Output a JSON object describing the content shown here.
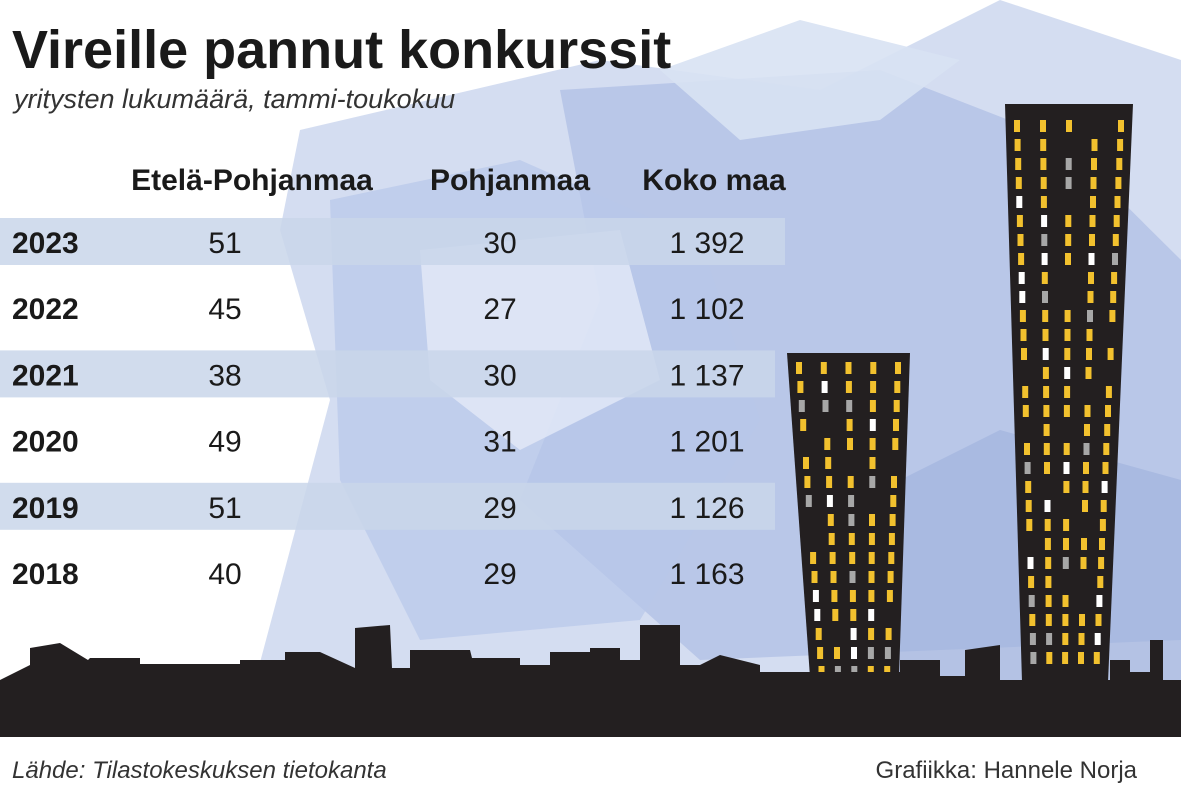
{
  "header": {
    "title": "Vireille pannut konkurssit",
    "subtitle": "yritysten lukumäärä, tammi-toukokuu"
  },
  "table": {
    "columns": [
      "Etelä-Pohjanmaa",
      "Pohjanmaa",
      "Koko maa"
    ],
    "rows": [
      [
        "2023",
        "51",
        "30",
        "1 392"
      ],
      [
        "2022",
        "45",
        "27",
        "1 102"
      ],
      [
        "2021",
        "38",
        "30",
        "1 137"
      ],
      [
        "2020",
        "49",
        "31",
        "1 201"
      ],
      [
        "2019",
        "51",
        "29",
        "1 126"
      ],
      [
        "2018",
        "40",
        "29",
        "1 163"
      ]
    ]
  },
  "footer": {
    "source": "Lähde: Tilastokeskuksen tietokanta",
    "credit": "Grafiikka: Hannele Norja"
  }
}
